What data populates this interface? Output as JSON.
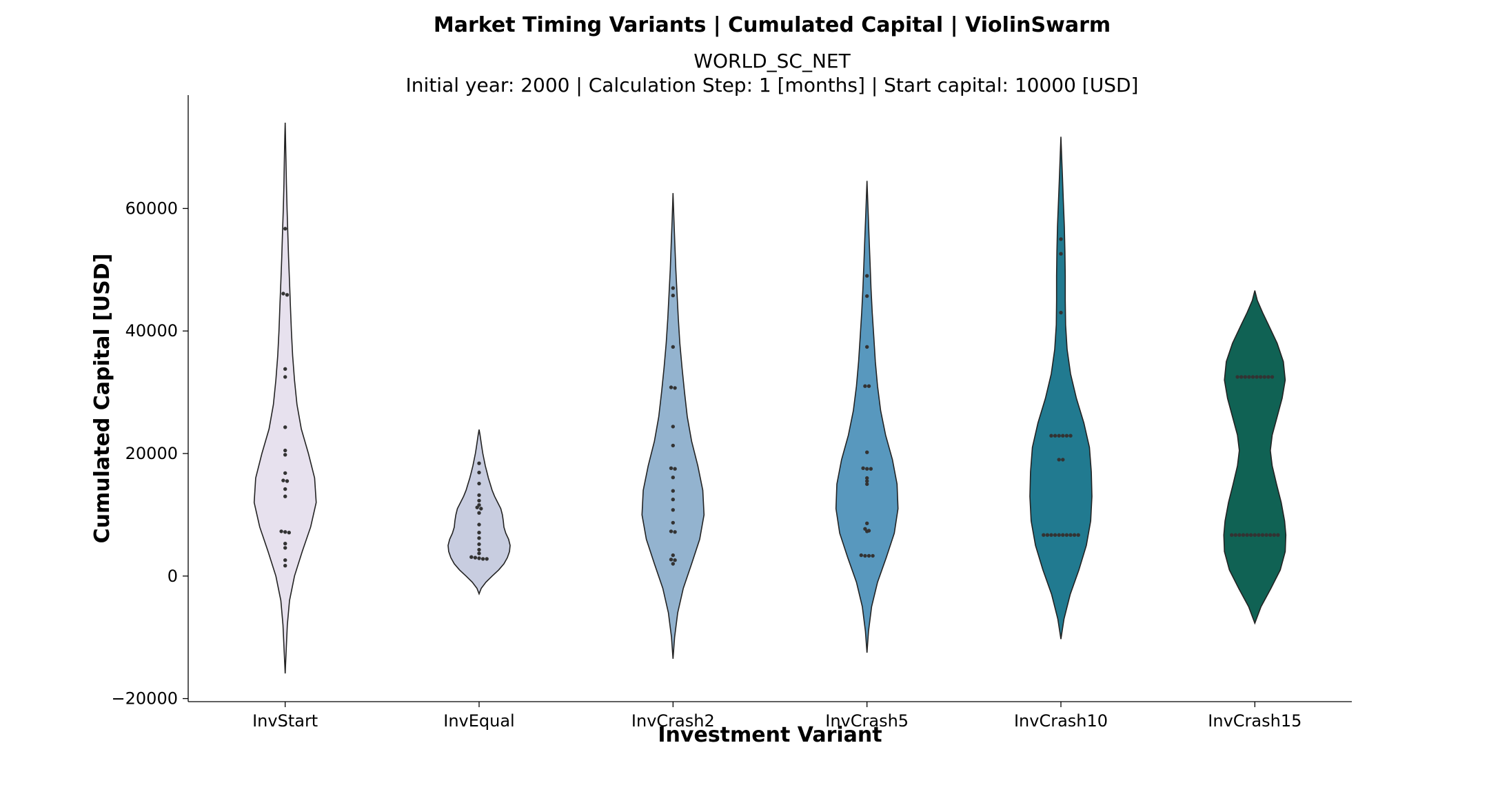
{
  "chart_data": {
    "type": "violin",
    "title": "Market Timing Variants | Cumulated Capital | ViolinSwarm",
    "subtitle_lines": [
      "WORLD_SC_NET",
      "Initial year: 2000 | Calculation Step: 1 [months] | Start capital: 10000 [USD]"
    ],
    "xlabel": "Investment Variant",
    "ylabel": "Cumulated Capital [USD]",
    "ylim": [
      -20500,
      78500
    ],
    "y_ticks": [
      60000,
      40000,
      20000,
      0,
      -20000
    ],
    "y_tick_labels": [
      "60000",
      "40000",
      "20000",
      "0",
      "−20000"
    ],
    "grid": false,
    "categories": [
      "InvStart",
      "InvEqual",
      "InvCrash2",
      "InvCrash5",
      "InvCrash10",
      "InvCrash15"
    ],
    "colors": [
      "#e7e1ee",
      "#c8cde0",
      "#93b3cf",
      "#5898be",
      "#217a90",
      "#106254"
    ],
    "violins": [
      {
        "name": "InvStart",
        "range": [
          -15900,
          74000
        ],
        "profile": [
          [
            -15900,
            0.0
          ],
          [
            -12000,
            0.035
          ],
          [
            -8000,
            0.07
          ],
          [
            -4000,
            0.14
          ],
          [
            0,
            0.3
          ],
          [
            4000,
            0.55
          ],
          [
            8000,
            0.82
          ],
          [
            12000,
            1.0
          ],
          [
            16000,
            0.95
          ],
          [
            20000,
            0.75
          ],
          [
            24000,
            0.52
          ],
          [
            28000,
            0.38
          ],
          [
            32000,
            0.3
          ],
          [
            36000,
            0.24
          ],
          [
            40000,
            0.2
          ],
          [
            44000,
            0.17
          ],
          [
            48000,
            0.14
          ],
          [
            52000,
            0.11
          ],
          [
            56000,
            0.085
          ],
          [
            60000,
            0.06
          ],
          [
            64000,
            0.04
          ],
          [
            68000,
            0.025
          ],
          [
            72000,
            0.01
          ],
          [
            74000,
            0.0
          ]
        ],
        "points": [
          56700,
          46100,
          45900,
          33800,
          32500,
          24300,
          20500,
          19800,
          16800,
          15600,
          15500,
          14200,
          13000,
          7300,
          7200,
          7100,
          5300,
          4600,
          2600,
          1700
        ]
      },
      {
        "name": "InvEqual",
        "range": [
          -2900,
          23900
        ],
        "profile": [
          [
            -2900,
            0.0
          ],
          [
            -2000,
            0.07
          ],
          [
            -1000,
            0.22
          ],
          [
            0,
            0.42
          ],
          [
            1000,
            0.63
          ],
          [
            2000,
            0.8
          ],
          [
            3000,
            0.91
          ],
          [
            4000,
            0.98
          ],
          [
            5000,
            1.0
          ],
          [
            6000,
            0.95
          ],
          [
            7000,
            0.86
          ],
          [
            8000,
            0.8
          ],
          [
            9000,
            0.78
          ],
          [
            10000,
            0.75
          ],
          [
            11000,
            0.7
          ],
          [
            12000,
            0.6
          ],
          [
            13000,
            0.5
          ],
          [
            14000,
            0.42
          ],
          [
            15000,
            0.36
          ],
          [
            16000,
            0.3
          ],
          [
            17000,
            0.25
          ],
          [
            18000,
            0.2
          ],
          [
            19000,
            0.16
          ],
          [
            20000,
            0.12
          ],
          [
            21000,
            0.09
          ],
          [
            22000,
            0.06
          ],
          [
            23000,
            0.03
          ],
          [
            23900,
            0.0
          ]
        ],
        "points": [
          18400,
          16900,
          15100,
          13200,
          12300,
          11600,
          11200,
          11000,
          10300,
          8400,
          7100,
          6200,
          5200,
          4300,
          3700,
          3100,
          3000,
          2900,
          2800,
          2800
        ]
      },
      {
        "name": "InvCrash2",
        "range": [
          -13500,
          62500
        ],
        "profile": [
          [
            -13500,
            0.0
          ],
          [
            -10000,
            0.05
          ],
          [
            -6000,
            0.15
          ],
          [
            -2000,
            0.33
          ],
          [
            2000,
            0.6
          ],
          [
            6000,
            0.86
          ],
          [
            10000,
            1.0
          ],
          [
            14000,
            0.96
          ],
          [
            18000,
            0.8
          ],
          [
            22000,
            0.6
          ],
          [
            26000,
            0.46
          ],
          [
            30000,
            0.37
          ],
          [
            34000,
            0.29
          ],
          [
            38000,
            0.22
          ],
          [
            42000,
            0.17
          ],
          [
            46000,
            0.13
          ],
          [
            50000,
            0.09
          ],
          [
            54000,
            0.06
          ],
          [
            58000,
            0.03
          ],
          [
            62500,
            0.0
          ]
        ],
        "points": [
          47000,
          45800,
          37400,
          30800,
          30700,
          24400,
          21300,
          17600,
          17500,
          16100,
          13900,
          12500,
          10800,
          8700,
          7300,
          7200,
          3400,
          2700,
          2600,
          2000
        ]
      },
      {
        "name": "InvCrash5",
        "range": [
          -12500,
          64500
        ],
        "profile": [
          [
            -12500,
            0.0
          ],
          [
            -9000,
            0.05
          ],
          [
            -5000,
            0.15
          ],
          [
            -1000,
            0.34
          ],
          [
            3000,
            0.62
          ],
          [
            7000,
            0.88
          ],
          [
            11000,
            1.0
          ],
          [
            15000,
            0.97
          ],
          [
            19000,
            0.82
          ],
          [
            23000,
            0.6
          ],
          [
            27000,
            0.44
          ],
          [
            31000,
            0.34
          ],
          [
            35000,
            0.27
          ],
          [
            39000,
            0.22
          ],
          [
            43000,
            0.17
          ],
          [
            47000,
            0.13
          ],
          [
            51000,
            0.1
          ],
          [
            55000,
            0.07
          ],
          [
            59000,
            0.04
          ],
          [
            64500,
            0.0
          ]
        ],
        "points": [
          49000,
          45700,
          37400,
          31000,
          31000,
          20200,
          17600,
          17500,
          17500,
          16000,
          15500,
          15000,
          8600,
          7700,
          7400,
          7300,
          3400,
          3300,
          3300,
          3300
        ]
      },
      {
        "name": "InvCrash10",
        "range": [
          -10300,
          71700
        ],
        "profile": [
          [
            -10300,
            0.0
          ],
          [
            -7000,
            0.1
          ],
          [
            -3000,
            0.3
          ],
          [
            1000,
            0.58
          ],
          [
            5000,
            0.82
          ],
          [
            9000,
            0.96
          ],
          [
            13000,
            1.0
          ],
          [
            17000,
            0.98
          ],
          [
            21000,
            0.92
          ],
          [
            25000,
            0.74
          ],
          [
            29000,
            0.5
          ],
          [
            33000,
            0.31
          ],
          [
            37000,
            0.2
          ],
          [
            41000,
            0.15
          ],
          [
            45000,
            0.14
          ],
          [
            49000,
            0.14
          ],
          [
            53000,
            0.13
          ],
          [
            57000,
            0.11
          ],
          [
            61000,
            0.08
          ],
          [
            65000,
            0.05
          ],
          [
            69000,
            0.02
          ],
          [
            71700,
            0.0
          ]
        ],
        "points": [
          55000,
          52600,
          43000,
          22900,
          22900,
          22900,
          22900,
          22900,
          22900,
          19000,
          19000,
          6700,
          6700,
          6700,
          6700,
          6700,
          6700,
          6700,
          6700,
          6700,
          6700
        ]
      },
      {
        "name": "InvCrash15",
        "range": [
          -7700,
          46600
        ],
        "profile": [
          [
            -7700,
            0.0
          ],
          [
            -5000,
            0.2
          ],
          [
            -2000,
            0.52
          ],
          [
            1000,
            0.82
          ],
          [
            4000,
            0.98
          ],
          [
            6700,
            1.0
          ],
          [
            9000,
            0.96
          ],
          [
            12000,
            0.85
          ],
          [
            15000,
            0.7
          ],
          [
            18000,
            0.56
          ],
          [
            20500,
            0.5
          ],
          [
            23000,
            0.56
          ],
          [
            26000,
            0.72
          ],
          [
            29000,
            0.88
          ],
          [
            32000,
            0.98
          ],
          [
            35000,
            0.92
          ],
          [
            38000,
            0.72
          ],
          [
            41000,
            0.44
          ],
          [
            43000,
            0.25
          ],
          [
            45000,
            0.08
          ],
          [
            46600,
            0.0
          ]
        ],
        "points": [
          32500,
          32500,
          32500,
          32500,
          32500,
          32500,
          32500,
          32500,
          32500,
          32500,
          6700,
          6700,
          6700,
          6700,
          6700,
          6700,
          6700,
          6700,
          6700,
          6700,
          6700,
          6700,
          6700
        ]
      }
    ]
  }
}
